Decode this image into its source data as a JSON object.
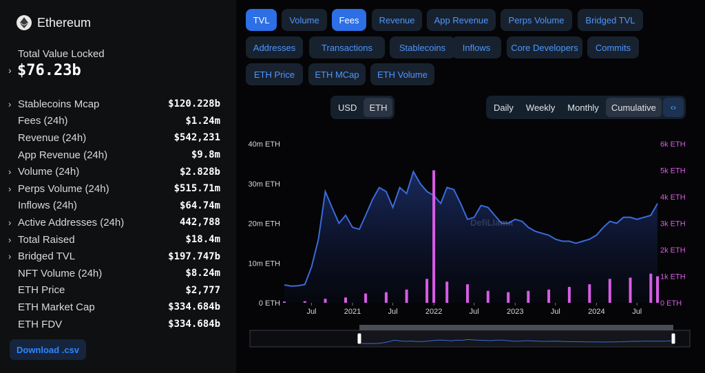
{
  "sidebar": {
    "chain_name": "Ethereum",
    "tvl_label": "Total Value Locked",
    "tvl_value": "$76.23b",
    "stats": [
      {
        "label": "Stablecoins Mcap",
        "value": "$120.228b",
        "expandable": true
      },
      {
        "label": "Fees (24h)",
        "value": "$1.24m",
        "expandable": false
      },
      {
        "label": "Revenue (24h)",
        "value": "$542,231",
        "expandable": false
      },
      {
        "label": "App Revenue (24h)",
        "value": "$9.8m",
        "expandable": false
      },
      {
        "label": "Volume (24h)",
        "value": "$2.828b",
        "expandable": true
      },
      {
        "label": "Perps Volume (24h)",
        "value": "$515.71m",
        "expandable": true
      },
      {
        "label": "Inflows (24h)",
        "value": "$64.74m",
        "expandable": false
      },
      {
        "label": "Active Addresses (24h)",
        "value": "442,788",
        "expandable": true
      },
      {
        "label": "Total Raised",
        "value": "$18.4m",
        "expandable": true
      },
      {
        "label": "Bridged TVL",
        "value": "$197.747b",
        "expandable": true
      },
      {
        "label": "NFT Volume (24h)",
        "value": "$8.24m",
        "expandable": false
      },
      {
        "label": "ETH Price",
        "value": "$2,777",
        "expandable": false
      },
      {
        "label": "ETH Market Cap",
        "value": "$334.684b",
        "expandable": false
      },
      {
        "label": "ETH FDV",
        "value": "$334.684b",
        "expandable": false
      }
    ],
    "download_label": "Download .csv"
  },
  "metric_tabs": [
    {
      "label": "TVL",
      "active": true
    },
    {
      "label": "Volume",
      "active": false
    },
    {
      "label": "Fees",
      "active": true
    },
    {
      "label": "Revenue",
      "active": false
    },
    {
      "label": "App Revenue",
      "active": false
    },
    {
      "label": "Perps Volume",
      "active": false
    },
    {
      "label": "Bridged TVL",
      "active": false
    },
    {
      "label": "Addresses",
      "active": false
    },
    {
      "label": "Transactions",
      "active": false
    },
    {
      "label": "Stablecoins",
      "active": false
    },
    {
      "label": "Inflows",
      "active": false
    },
    {
      "label": "Core Developers",
      "active": false
    },
    {
      "label": "Commits",
      "active": false
    },
    {
      "label": "ETH Price",
      "active": false
    },
    {
      "label": "ETH MCap",
      "active": false
    },
    {
      "label": "ETH Volume",
      "active": false
    }
  ],
  "denomination": {
    "options": [
      "USD",
      "ETH"
    ],
    "selected": "ETH"
  },
  "period": {
    "options": [
      "Daily",
      "Weekly",
      "Monthly",
      "Cumulative"
    ],
    "selected": "Cumulative",
    "embed_icon": "code-icon"
  },
  "watermark": "DefiLlama",
  "colors": {
    "tvl_line": "#3b6bdc",
    "fees_bar": "#d85ce6",
    "accent": "#2c6fe6"
  },
  "chart_data": {
    "type": "line",
    "title": "",
    "x_tick_labels": [
      "Jul",
      "2021",
      "Jul",
      "2022",
      "Jul",
      "2023",
      "Jul",
      "2024",
      "Jul"
    ],
    "left_axis": {
      "ticks": [
        "0 ETH",
        "10m ETH",
        "20m ETH",
        "30m ETH",
        "40m ETH"
      ],
      "ylim": [
        0,
        40000000
      ]
    },
    "right_axis": {
      "ticks": [
        "0 ETH",
        "1k ETH",
        "2k ETH",
        "3k ETH",
        "4k ETH",
        "5k ETH",
        "6k ETH"
      ],
      "ylim": [
        0,
        6000
      ]
    },
    "series": [
      {
        "axis": "left",
        "type": "area",
        "x": [
          "2020-03",
          "2020-04",
          "2020-05",
          "2020-06",
          "2020-07",
          "2020-08",
          "2020-09",
          "2020-10",
          "2020-11",
          "2020-12",
          "2021-01",
          "2021-02",
          "2021-03",
          "2021-04",
          "2021-05",
          "2021-06",
          "2021-07",
          "2021-08",
          "2021-09",
          "2021-10",
          "2021-11",
          "2021-12",
          "2022-01",
          "2022-02",
          "2022-03",
          "2022-04",
          "2022-05",
          "2022-06",
          "2022-07",
          "2022-08",
          "2022-09",
          "2022-10",
          "2022-11",
          "2022-12",
          "2023-01",
          "2023-02",
          "2023-03",
          "2023-04",
          "2023-05",
          "2023-06",
          "2023-07",
          "2023-08",
          "2023-09",
          "2023-10",
          "2023-11",
          "2023-12",
          "2024-01",
          "2024-02",
          "2024-03",
          "2024-04",
          "2024-05",
          "2024-06",
          "2024-07",
          "2024-08",
          "2024-09",
          "2024-10"
        ],
        "values": [
          4500000,
          4200000,
          4300000,
          4600000,
          9000000,
          16000000,
          28000000,
          24000000,
          20000000,
          22000000,
          19000000,
          18500000,
          22000000,
          26000000,
          29000000,
          28000000,
          24000000,
          29000000,
          27500000,
          33000000,
          30000000,
          28000000,
          27000000,
          25000000,
          29000000,
          28500000,
          25000000,
          21000000,
          21500000,
          24500000,
          24000000,
          22000000,
          20000000,
          20000000,
          21000000,
          20500000,
          19000000,
          18000000,
          17500000,
          17000000,
          16000000,
          15500000,
          15500000,
          15000000,
          15500000,
          16000000,
          17000000,
          19000000,
          20500000,
          20000000,
          21500000,
          21500000,
          21000000,
          21500000,
          22000000,
          25000000
        ]
      },
      {
        "axis": "right",
        "type": "bar",
        "x": [
          "2020-03",
          "2020-06",
          "2020-09",
          "2020-12",
          "2021-03",
          "2021-06",
          "2021-09",
          "2021-12",
          "2022-01",
          "2022-03",
          "2022-06",
          "2022-09",
          "2022-12",
          "2023-03",
          "2023-06",
          "2023-09",
          "2023-12",
          "2024-03",
          "2024-06",
          "2024-09",
          "2024-10"
        ],
        "values": [
          50,
          60,
          150,
          200,
          350,
          400,
          500,
          900,
          5000,
          800,
          700,
          450,
          400,
          450,
          500,
          600,
          700,
          900,
          950,
          1100,
          1000
        ]
      }
    ],
    "grid": false
  }
}
